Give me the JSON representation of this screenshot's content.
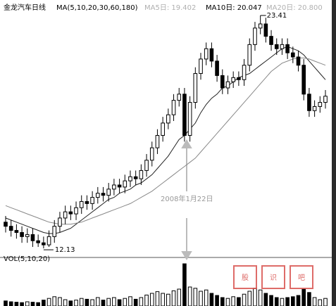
{
  "chart_data": {
    "type": "candlestick",
    "title": "金龙汽车日线",
    "indicator": "MA(5,10,20,30,60,180)",
    "ma_labels": [
      "MA5日: 19.402",
      "MA10日: 20.047",
      "MA20日: 20.800"
    ],
    "high_label": "23.41",
    "low_label": "12.13",
    "date_annotation": "2008年1月22日",
    "volume_title": "VOL(5,10,20)",
    "watermark": [
      "股",
      "识",
      "吧"
    ],
    "ylim": [
      11.69,
      23.75
    ],
    "open": [
      13.4,
      13.2,
      13.0,
      12.9,
      12.7,
      12.8,
      12.5,
      12.4,
      12.3,
      12.7,
      13.2,
      13.6,
      13.9,
      13.8,
      14.1,
      14.4,
      14.3,
      14.6,
      14.8,
      14.7,
      15.0,
      15.2,
      15.1,
      15.4,
      15.6,
      15.5,
      15.9,
      16.4,
      17.0,
      17.6,
      18.2,
      18.6,
      19.3,
      19.6,
      17.6,
      19.2,
      20.6,
      21.3,
      21.8,
      21.2,
      20.5,
      19.9,
      20.2,
      20.4,
      20.3,
      21.0,
      22.0,
      22.8,
      23.0,
      22.4,
      22.0,
      21.8,
      22.0,
      21.6,
      21.4,
      21.0,
      19.6,
      18.8,
      19.0,
      19.2
    ],
    "high": [
      13.7,
      13.5,
      13.3,
      13.2,
      13.1,
      13.1,
      12.8,
      12.7,
      13.0,
      13.5,
      13.9,
      14.2,
      14.2,
      14.4,
      14.7,
      14.7,
      14.9,
      15.1,
      15.1,
      15.3,
      15.5,
      15.5,
      15.7,
      15.9,
      15.9,
      16.2,
      16.7,
      17.3,
      17.9,
      18.5,
      18.9,
      19.6,
      19.9,
      19.9,
      19.5,
      20.9,
      21.6,
      22.1,
      22.1,
      21.5,
      20.8,
      20.5,
      20.7,
      20.7,
      21.3,
      22.3,
      23.1,
      23.41,
      23.3,
      22.7,
      22.3,
      22.3,
      22.3,
      21.9,
      21.7,
      21.3,
      19.9,
      19.3,
      19.5,
      19.8
    ],
    "low": [
      12.9,
      12.7,
      12.6,
      12.4,
      12.4,
      12.2,
      12.2,
      12.13,
      12.2,
      12.4,
      12.9,
      13.3,
      13.5,
      13.5,
      13.8,
      14.0,
      14.0,
      14.3,
      14.4,
      14.4,
      14.7,
      14.8,
      14.8,
      15.1,
      15.2,
      15.2,
      15.6,
      16.1,
      16.7,
      17.3,
      17.9,
      18.3,
      19.0,
      17.3,
      17.3,
      18.9,
      20.3,
      21.0,
      20.9,
      20.2,
      19.6,
      19.6,
      19.9,
      20.0,
      20.0,
      20.7,
      21.7,
      22.5,
      22.1,
      21.7,
      21.5,
      21.5,
      21.3,
      21.1,
      20.7,
      19.3,
      18.5,
      18.5,
      18.7,
      18.9
    ],
    "close": [
      13.2,
      13.0,
      12.9,
      12.7,
      12.8,
      12.5,
      12.4,
      12.3,
      12.7,
      13.2,
      13.6,
      13.9,
      13.8,
      14.1,
      14.4,
      14.3,
      14.6,
      14.8,
      14.7,
      15.0,
      15.2,
      15.1,
      15.4,
      15.6,
      15.5,
      15.9,
      16.4,
      17.0,
      17.6,
      18.2,
      18.6,
      19.3,
      19.6,
      17.6,
      19.2,
      20.6,
      21.3,
      21.8,
      21.2,
      20.5,
      19.9,
      20.2,
      20.4,
      20.3,
      21.0,
      22.0,
      22.8,
      23.0,
      22.4,
      22.0,
      21.8,
      22.0,
      21.6,
      21.4,
      21.0,
      19.6,
      18.8,
      19.0,
      19.2,
      19.5
    ],
    "ma_lines": [
      {
        "color": "#222222",
        "values": [
          13.6,
          13.5,
          13.4,
          13.3,
          13.2,
          13.1,
          13.0,
          12.9,
          12.85,
          12.85,
          12.9,
          13.0,
          13.1,
          13.3,
          13.5,
          13.7,
          13.9,
          14.1,
          14.3,
          14.5,
          14.6,
          14.8,
          14.9,
          15.0,
          15.2,
          15.3,
          15.5,
          15.7,
          16.0,
          16.3,
          16.6,
          17.0,
          17.4,
          17.6,
          17.9,
          18.2,
          18.7,
          19.1,
          19.4,
          19.6,
          19.9,
          20.0,
          20.2,
          20.4,
          20.5,
          20.6,
          20.8,
          21.0,
          21.2,
          21.4,
          21.6,
          21.8,
          21.9,
          21.8,
          21.7,
          21.5,
          21.2,
          20.9,
          20.6,
          20.3
        ]
      },
      {
        "color": "#888888",
        "values": [
          14.2,
          14.1,
          14.0,
          13.9,
          13.8,
          13.7,
          13.6,
          13.5,
          13.4,
          13.35,
          13.3,
          13.3,
          13.3,
          13.35,
          13.4,
          13.5,
          13.6,
          13.7,
          13.8,
          13.9,
          14.0,
          14.1,
          14.2,
          14.3,
          14.45,
          14.6,
          14.75,
          14.9,
          15.1,
          15.3,
          15.5,
          15.7,
          15.9,
          16.1,
          16.3,
          16.5,
          16.8,
          17.1,
          17.4,
          17.7,
          18.0,
          18.3,
          18.6,
          18.9,
          19.2,
          19.5,
          19.8,
          20.1,
          20.4,
          20.7,
          20.9,
          21.1,
          21.2,
          21.3,
          21.35,
          21.35,
          21.3,
          21.2,
          21.1,
          21.0
        ]
      }
    ],
    "volume": [
      12,
      10,
      9,
      8,
      10,
      9,
      8,
      14,
      18,
      22,
      20,
      15,
      12,
      14,
      18,
      16,
      15,
      20,
      14,
      18,
      20,
      15,
      18,
      22,
      16,
      20,
      26,
      30,
      34,
      30,
      28,
      36,
      40,
      100,
      45,
      42,
      35,
      38,
      30,
      25,
      20,
      18,
      22,
      20,
      28,
      35,
      42,
      38,
      30,
      25,
      20,
      18,
      20,
      22,
      25,
      40,
      32,
      20,
      15,
      18
    ],
    "vlim": [
      0,
      100
    ]
  }
}
